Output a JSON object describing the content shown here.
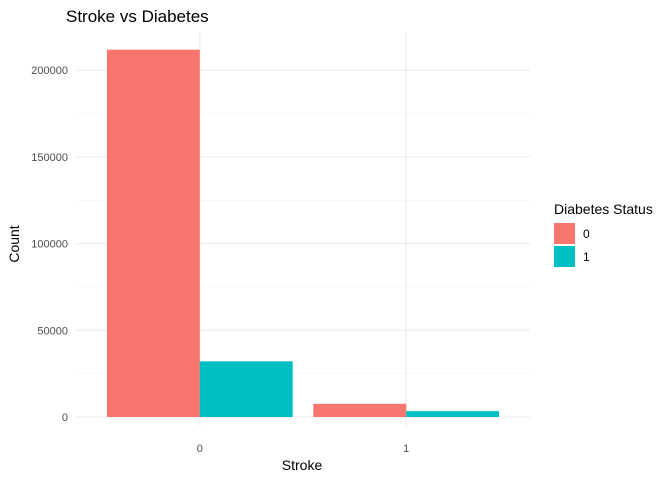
{
  "chart_data": {
    "type": "bar",
    "title": "Stroke vs Diabetes",
    "xlabel": "Stroke",
    "ylabel": "Count",
    "categories": [
      "0",
      "1"
    ],
    "series": [
      {
        "name": "0",
        "values": [
          211800,
          7600
        ],
        "color": "#F8766D"
      },
      {
        "name": "1",
        "values": [
          32100,
          3400
        ],
        "color": "#00BFC4"
      }
    ],
    "ylim": [
      0,
      222000
    ],
    "yticks": [
      0,
      50000,
      100000,
      150000,
      200000
    ],
    "ytick_labels": [
      "0",
      "50000",
      "100000",
      "150000",
      "200000"
    ],
    "grid": true,
    "legend": {
      "title": "Diabetes Status",
      "position": "right"
    }
  }
}
